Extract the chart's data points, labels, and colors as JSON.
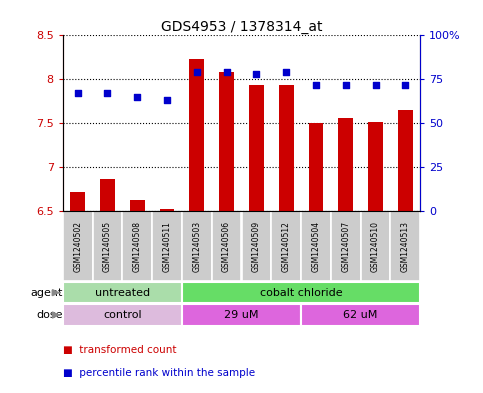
{
  "title": "GDS4953 / 1378314_at",
  "samples": [
    "GSM1240502",
    "GSM1240505",
    "GSM1240508",
    "GSM1240511",
    "GSM1240503",
    "GSM1240506",
    "GSM1240509",
    "GSM1240512",
    "GSM1240504",
    "GSM1240507",
    "GSM1240510",
    "GSM1240513"
  ],
  "bar_values": [
    6.72,
    6.87,
    6.63,
    6.53,
    8.23,
    8.08,
    7.93,
    7.93,
    7.5,
    7.56,
    7.51,
    7.65
  ],
  "bar_bottom": 6.5,
  "dot_values": [
    67,
    67,
    65,
    63,
    79,
    79,
    78,
    79,
    72,
    72,
    72,
    72
  ],
  "ylim_left": [
    6.5,
    8.5
  ],
  "ylim_right": [
    0,
    100
  ],
  "yticks_left": [
    6.5,
    7.0,
    7.5,
    8.0,
    8.5
  ],
  "yticks_right": [
    0,
    25,
    50,
    75,
    100
  ],
  "ytick_labels_right": [
    "0",
    "25",
    "50",
    "75",
    "100%"
  ],
  "bar_color": "#cc0000",
  "dot_color": "#0000cc",
  "agent_groups": [
    {
      "label": "untreated",
      "start": 0,
      "end": 4,
      "color": "#aaddaa"
    },
    {
      "label": "cobalt chloride",
      "start": 4,
      "end": 12,
      "color": "#66dd66"
    }
  ],
  "dose_groups": [
    {
      "label": "control",
      "start": 0,
      "end": 4,
      "color": "#ddbbdd"
    },
    {
      "label": "29 uM",
      "start": 4,
      "end": 8,
      "color": "#dd66dd"
    },
    {
      "label": "62 uM",
      "start": 8,
      "end": 12,
      "color": "#dd66dd"
    }
  ],
  "legend_bar_label": "transformed count",
  "legend_dot_label": "percentile rank within the sample",
  "background_color": "#ffffff",
  "plot_bg_color": "#ffffff",
  "sample_box_color": "#cccccc",
  "label_agent": "agent",
  "label_dose": "dose",
  "figsize": [
    4.83,
    3.93
  ],
  "dpi": 100
}
